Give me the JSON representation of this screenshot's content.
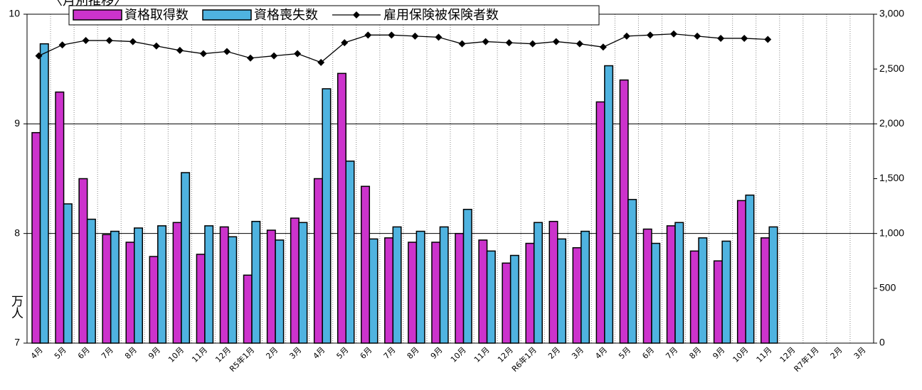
{
  "chart_data": {
    "type": "bar-line",
    "title": "〈月別推移〉",
    "y_label": "万人",
    "categories": [
      "4月",
      "5月",
      "6月",
      "7月",
      "8月",
      "9月",
      "10月",
      "11月",
      "12月",
      "R5年1月",
      "2月",
      "3月",
      "4月",
      "5月",
      "6月",
      "7月",
      "8月",
      "9月",
      "10月",
      "11月",
      "12月",
      "R6年1月",
      "2月",
      "3月",
      "4月",
      "5月",
      "6月",
      "7月",
      "8月",
      "9月",
      "10月",
      "11月",
      "12月",
      "R7年1月",
      "2月",
      "3月"
    ],
    "series": [
      {
        "name": "資格取得数",
        "type": "bar",
        "axis": "y2",
        "color": "#cc33cc",
        "values": [
          1920,
          2290,
          1500,
          990,
          920,
          790,
          1100,
          810,
          1060,
          620,
          1030,
          1140,
          1500,
          2460,
          1430,
          960,
          920,
          920,
          1000,
          940,
          730,
          910,
          1110,
          870,
          2200,
          2400,
          1040,
          1070,
          840,
          750,
          1300,
          960,
          null,
          null,
          null,
          null
        ]
      },
      {
        "name": "資格喪失数",
        "type": "bar",
        "axis": "y2",
        "color": "#4fb3e0",
        "values": [
          2730,
          1270,
          1130,
          1020,
          1050,
          1070,
          1555,
          1070,
          970,
          1110,
          940,
          1100,
          2320,
          1660,
          950,
          1060,
          1020,
          1060,
          1220,
          840,
          800,
          1100,
          950,
          1020,
          2530,
          1310,
          910,
          1100,
          960,
          930,
          1350,
          1060,
          null,
          null,
          null,
          null
        ]
      },
      {
        "name": "雇用保険被保険者数",
        "type": "line",
        "axis": "y",
        "color": "#000000",
        "values": [
          9.62,
          9.72,
          9.76,
          9.76,
          9.75,
          9.71,
          9.67,
          9.64,
          9.66,
          9.6,
          9.62,
          9.64,
          9.56,
          9.74,
          9.81,
          9.81,
          9.8,
          9.79,
          9.73,
          9.75,
          9.74,
          9.73,
          9.75,
          9.73,
          9.7,
          9.8,
          9.81,
          9.82,
          9.8,
          9.78,
          9.78,
          9.77,
          null,
          null,
          null,
          null
        ]
      }
    ],
    "ylim": [
      7,
      10
    ],
    "yticks": [
      7,
      8,
      9,
      10
    ],
    "y2lim": [
      0,
      3000
    ],
    "y2ticks": [
      0,
      500,
      {
        "value": 1000,
        "label": "1,000"
      },
      {
        "value": 1500,
        "label": "1,500"
      },
      {
        "value": 2000,
        "label": "2,000"
      },
      {
        "value": 2500,
        "label": "2,500"
      },
      {
        "value": 3000,
        "label": "3,000"
      }
    ],
    "grid": true
  }
}
